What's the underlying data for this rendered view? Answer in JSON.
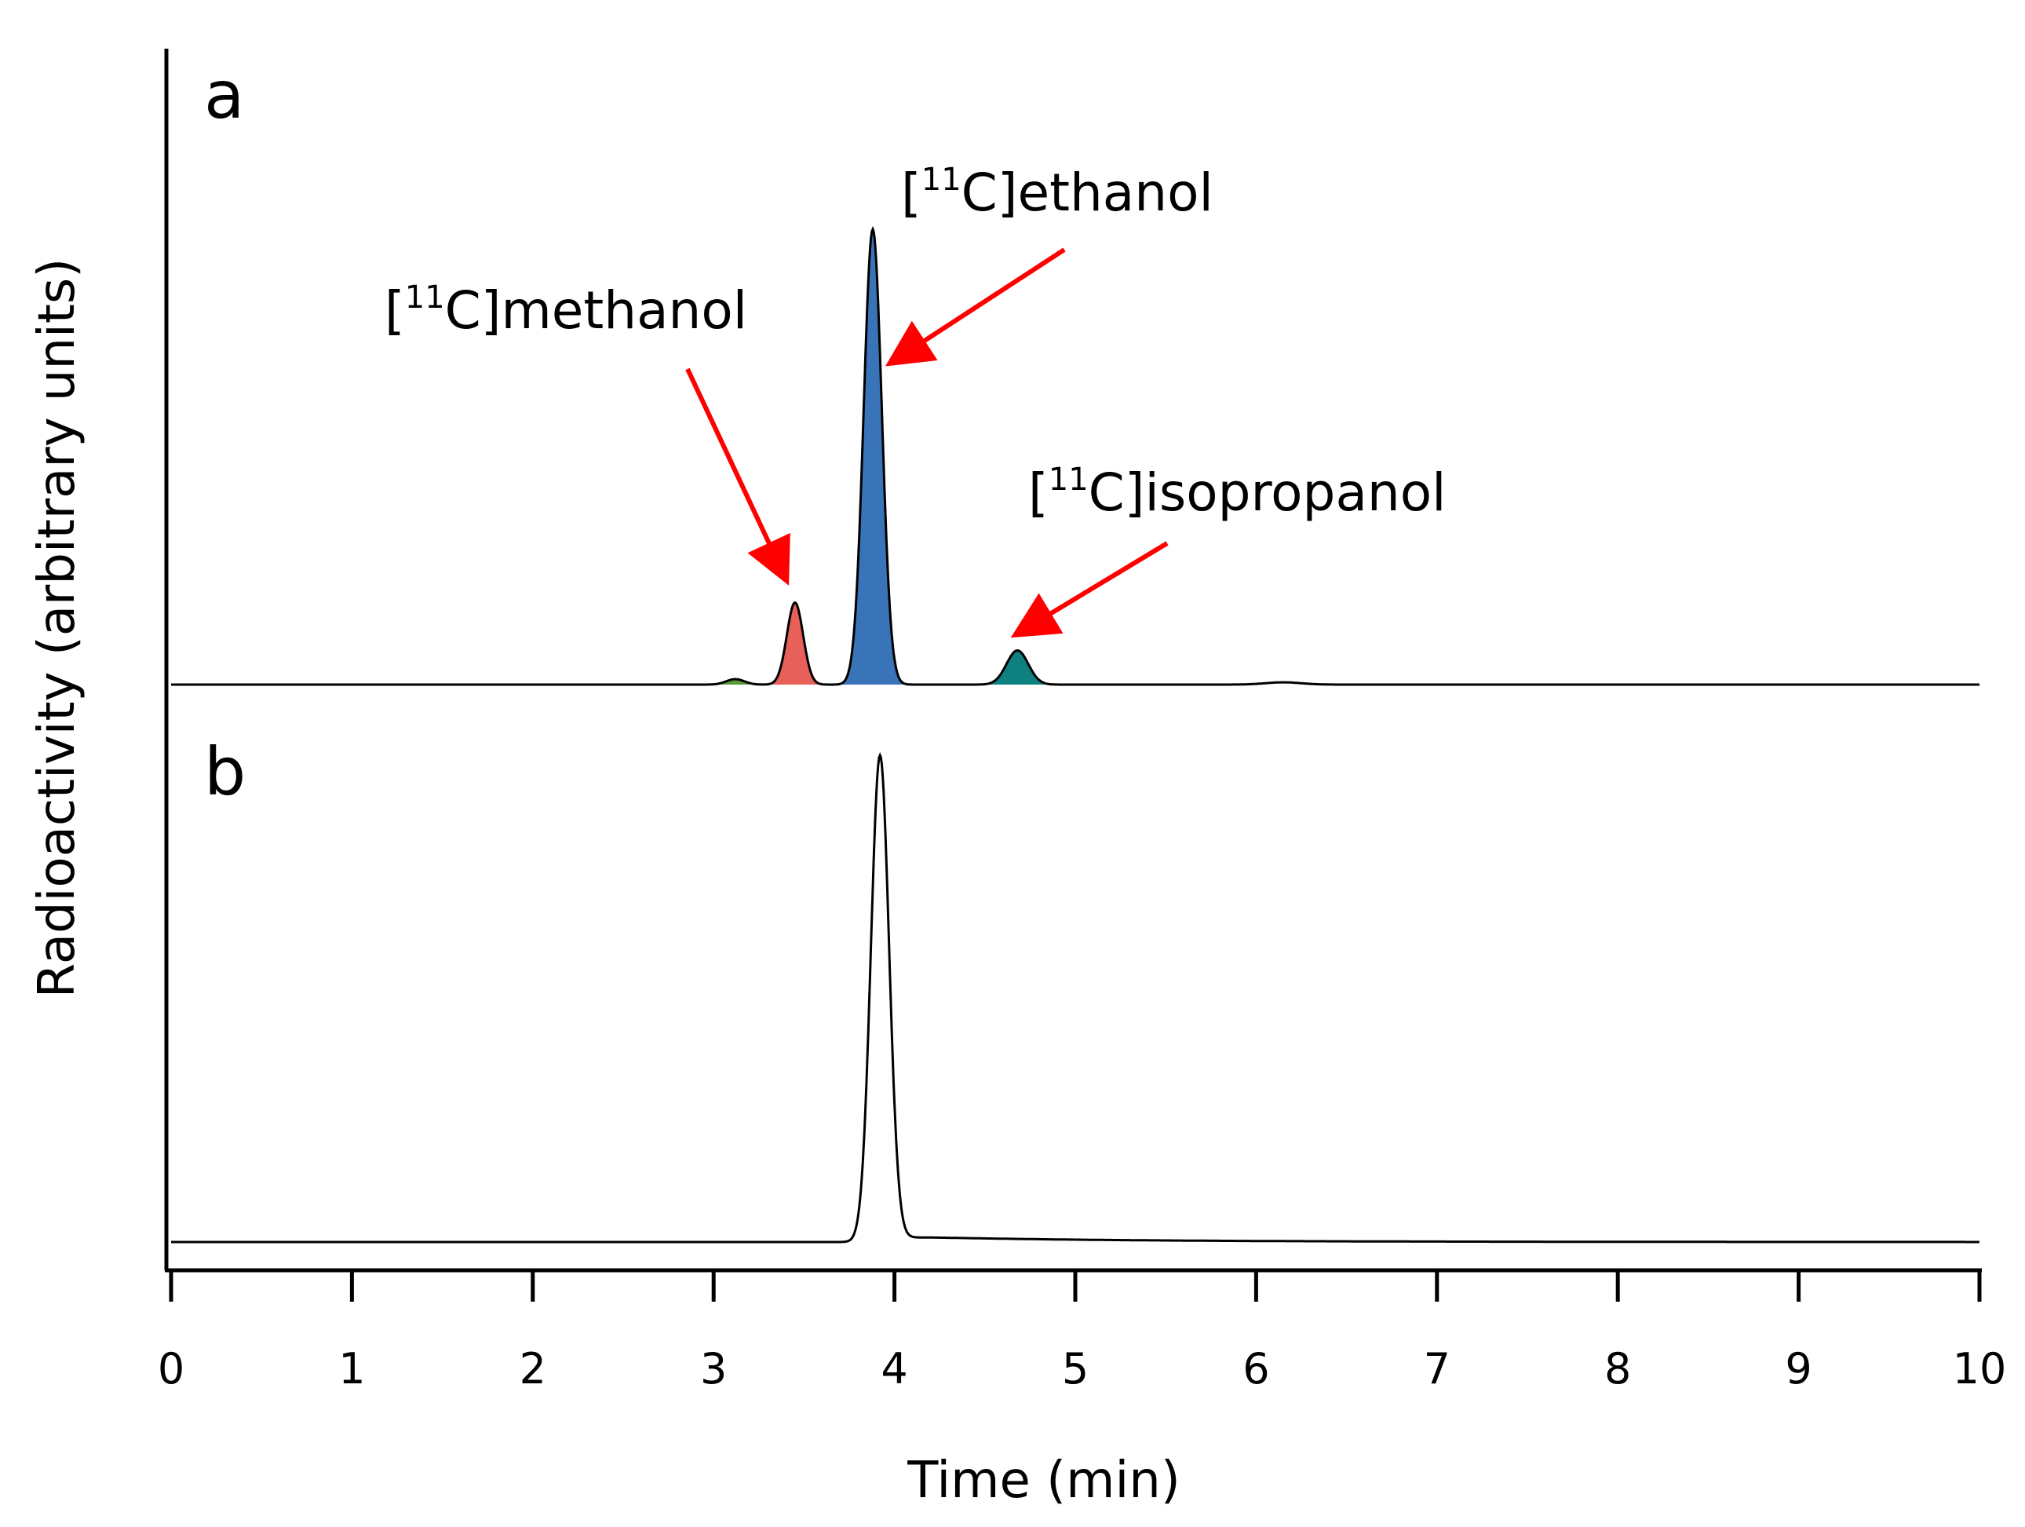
{
  "chart_data": {
    "type": "line",
    "title": "",
    "xlabel": "Time (min)",
    "ylabel": "Radioactivity (arbitrary units)",
    "xlim": [
      0,
      10
    ],
    "xticks": [
      "0",
      "1",
      "2",
      "3",
      "4",
      "5",
      "6",
      "7",
      "8",
      "9",
      "10"
    ],
    "panels": [
      {
        "label": "a",
        "ylim": [
          0,
          1.05
        ],
        "baseline": 0,
        "peaks": [
          {
            "name": "unlabeled minor peak",
            "rt": 3.12,
            "height": 0.012,
            "width": 0.05,
            "color": "#5a9a35"
          },
          {
            "name": "[11C]methanol",
            "rt": 3.45,
            "height": 0.18,
            "width": 0.045,
            "color": "#e8605a",
            "range": [
              3.3,
              3.65
            ]
          },
          {
            "name": "[11C]ethanol",
            "rt": 3.88,
            "height": 1.0,
            "width": 0.05,
            "color": "#3a74b8",
            "range": [
              3.7,
              4.2
            ]
          },
          {
            "name": "[11C]isopropanol",
            "rt": 4.68,
            "height": 0.075,
            "width": 0.06,
            "color": "#0f8080",
            "range": [
              4.5,
              4.95
            ]
          },
          {
            "name": "unlabeled minor peak",
            "rt": 6.15,
            "height": 0.005,
            "width": 0.1,
            "color": "#000000"
          }
        ],
        "labels": [
          {
            "prefix": "[",
            "sup": "11",
            "suffix": "C]methanol"
          },
          {
            "prefix": "[",
            "sup": "11",
            "suffix": "C]ethanol"
          },
          {
            "prefix": "[",
            "sup": "11",
            "suffix": "C]isopropanol"
          }
        ]
      },
      {
        "label": "b",
        "ylim": [
          0,
          1.05
        ],
        "baseline": 0,
        "peaks": [
          {
            "name": "[11C]ethanol",
            "rt": 3.92,
            "height": 1.0,
            "width": 0.05,
            "tail": 0.012,
            "color": "#000000"
          }
        ]
      }
    ],
    "arrow_color": "#ff0000"
  }
}
